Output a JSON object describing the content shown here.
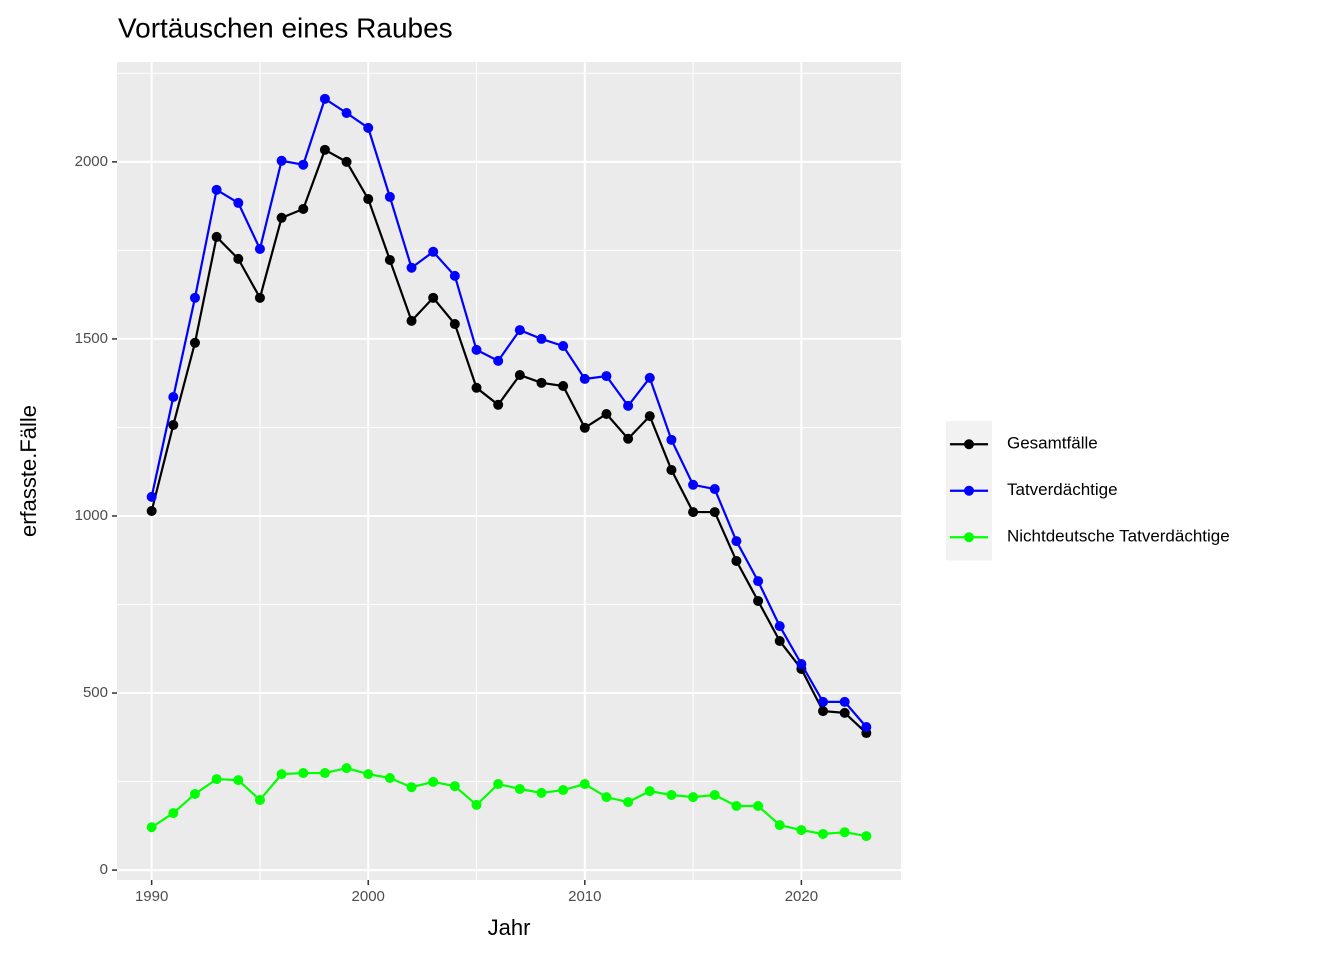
{
  "chart_data": {
    "type": "line",
    "title": "Vortäuschen eines Raubes",
    "x_label": "Jahr",
    "y_label": "erfasste.Fälle",
    "x": [
      1990,
      1991,
      1992,
      1993,
      1994,
      1995,
      1996,
      1997,
      1998,
      1999,
      2000,
      2001,
      2002,
      2003,
      2004,
      2005,
      2006,
      2007,
      2008,
      2009,
      2010,
      2011,
      2012,
      2013,
      2014,
      2015,
      2016,
      2017,
      2018,
      2019,
      2020,
      2021,
      2022,
      2023
    ],
    "series": [
      {
        "name": "Gesamtfälle",
        "color": "#000000",
        "values": [
          1014,
          1257,
          1489,
          1788,
          1726,
          1616,
          1842,
          1867,
          2034,
          2000,
          1895,
          1723,
          1551,
          1616,
          1542,
          1362,
          1314,
          1398,
          1376,
          1367,
          1249,
          1288,
          1218,
          1282,
          1130,
          1011,
          1011,
          873,
          760,
          647,
          568,
          449,
          444,
          387
        ]
      },
      {
        "name": "Tatverdächtige",
        "color": "#0000ff",
        "values": [
          1054,
          1336,
          1616,
          1921,
          1884,
          1754,
          2003,
          1992,
          2178,
          2138,
          2096,
          1901,
          1701,
          1746,
          1678,
          1469,
          1438,
          1525,
          1500,
          1480,
          1387,
          1395,
          1311,
          1390,
          1215,
          1088,
          1076,
          929,
          816,
          689,
          582,
          475,
          475,
          404
        ]
      },
      {
        "name": "Nichtdeutsche Tatverdächtige",
        "color": "#00ff00",
        "values": [
          121,
          161,
          215,
          257,
          254,
          198,
          271,
          274,
          274,
          288,
          271,
          260,
          234,
          249,
          237,
          184,
          243,
          229,
          218,
          226,
          243,
          206,
          192,
          223,
          212,
          206,
          212,
          181,
          181,
          127,
          113,
          102,
          107,
          96
        ]
      }
    ],
    "xlim": [
      1988.4,
      2024.6
    ],
    "xticks": [
      1990,
      2000,
      2010,
      2020
    ],
    "ylim": [
      -28,
      2282
    ],
    "yticks": [
      0,
      500,
      1000,
      1500,
      2000
    ],
    "grid": true
  }
}
